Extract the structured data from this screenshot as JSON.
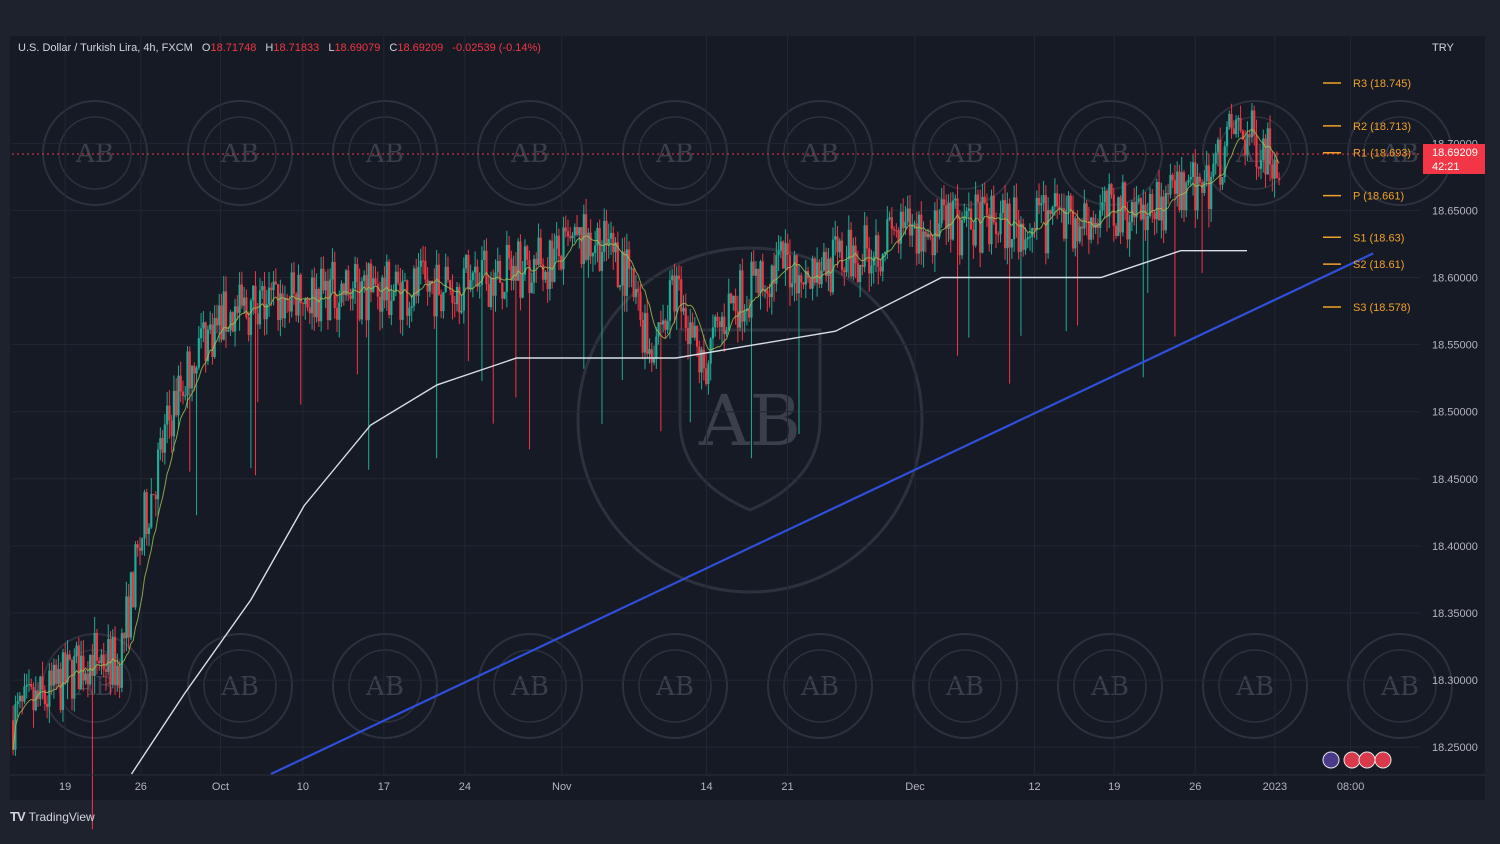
{
  "header": {
    "symbol": "U.S. Dollar / Turkish Lira, 4h, FXCM",
    "open_label": "O",
    "open": "18.71748",
    "high_label": "H",
    "high": "18.71833",
    "low_label": "L",
    "low": "18.69079",
    "close_label": "C",
    "close": "18.69209",
    "change": "-0.02539 (-0.14%)"
  },
  "currency": "TRY",
  "price_badge": {
    "price": "18.69209",
    "countdown": "42:21",
    "color": "#f23645"
  },
  "footer": {
    "logo_mark": "TV",
    "logo_text": "TradingView"
  },
  "colors": {
    "up": "#22ab94",
    "down": "#f23645",
    "trendline": "#2f4fd9",
    "pivot": "#f0a12a",
    "ma_slow": "#d9dfe6",
    "ma_fast": "#a3c455"
  },
  "chart_data": {
    "type": "candlestick",
    "ylim": [
      18.23,
      18.78
    ],
    "y_ticks": [
      "18.25000",
      "18.30000",
      "18.35000",
      "18.40000",
      "18.45000",
      "18.50000",
      "18.55000",
      "18.60000",
      "18.65000",
      "18.70000"
    ],
    "x_ticks": [
      {
        "label": "19",
        "t": 0.04
      },
      {
        "label": "26",
        "t": 0.097
      },
      {
        "label": "Oct",
        "t": 0.157
      },
      {
        "label": "10",
        "t": 0.219
      },
      {
        "label": "17",
        "t": 0.28
      },
      {
        "label": "24",
        "t": 0.341
      },
      {
        "label": "Nov",
        "t": 0.414
      },
      {
        "label": "14",
        "t": 0.523
      },
      {
        "label": "21",
        "t": 0.584
      },
      {
        "label": "Dec",
        "t": 0.68
      },
      {
        "label": "12",
        "t": 0.77
      },
      {
        "label": "19",
        "t": 0.83
      },
      {
        "label": "26",
        "t": 0.891
      },
      {
        "label": "2023",
        "t": 0.951
      },
      {
        "label": "08:00",
        "t": 1.008
      }
    ],
    "close_profile": [
      [
        0.0,
        18.27
      ],
      [
        0.03,
        18.29
      ],
      [
        0.06,
        18.32
      ],
      [
        0.08,
        18.31
      ],
      [
        0.1,
        18.42
      ],
      [
        0.12,
        18.5
      ],
      [
        0.14,
        18.55
      ],
      [
        0.16,
        18.57
      ],
      [
        0.19,
        18.58
      ],
      [
        0.24,
        18.59
      ],
      [
        0.3,
        18.59
      ],
      [
        0.36,
        18.6
      ],
      [
        0.4,
        18.61
      ],
      [
        0.44,
        18.63
      ],
      [
        0.46,
        18.61
      ],
      [
        0.48,
        18.55
      ],
      [
        0.5,
        18.59
      ],
      [
        0.52,
        18.53
      ],
      [
        0.54,
        18.58
      ],
      [
        0.58,
        18.61
      ],
      [
        0.62,
        18.61
      ],
      [
        0.66,
        18.63
      ],
      [
        0.72,
        18.64
      ],
      [
        0.78,
        18.64
      ],
      [
        0.84,
        18.65
      ],
      [
        0.88,
        18.66
      ],
      [
        0.9,
        18.67
      ],
      [
        0.92,
        18.71
      ],
      [
        0.94,
        18.7
      ],
      [
        0.955,
        18.69
      ]
    ],
    "ma_slow": [
      [
        0.09,
        18.23
      ],
      [
        0.13,
        18.29
      ],
      [
        0.18,
        18.36
      ],
      [
        0.22,
        18.43
      ],
      [
        0.27,
        18.49
      ],
      [
        0.32,
        18.52
      ],
      [
        0.38,
        18.54
      ],
      [
        0.44,
        18.54
      ],
      [
        0.5,
        18.54
      ],
      [
        0.56,
        18.55
      ],
      [
        0.62,
        18.56
      ],
      [
        0.66,
        18.58
      ],
      [
        0.7,
        18.6
      ],
      [
        0.76,
        18.6
      ],
      [
        0.82,
        18.6
      ],
      [
        0.88,
        18.62
      ],
      [
        0.93,
        18.62
      ]
    ],
    "trendline": {
      "from": [
        0.195,
        18.23
      ],
      "to": [
        1.025,
        18.618
      ]
    },
    "pivots": [
      {
        "label": "R3 (18.745)",
        "value": 18.745
      },
      {
        "label": "R2 (18.713)",
        "value": 18.713
      },
      {
        "label": "R1 (18.693)",
        "value": 18.693
      },
      {
        "label": "P (18.661)",
        "value": 18.661
      },
      {
        "label": "S1 (18.63)",
        "value": 18.63
      },
      {
        "label": "S2 (18.61)",
        "value": 18.61
      },
      {
        "label": "S3 (18.578)",
        "value": 18.578
      }
    ],
    "last_price": 18.69209
  }
}
